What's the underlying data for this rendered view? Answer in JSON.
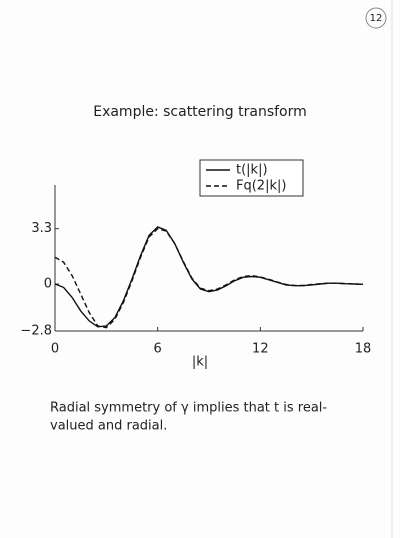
{
  "page_number": "12",
  "chart_data": {
    "type": "line",
    "title": "Example: scattering transform",
    "x": [
      0,
      0.5,
      1,
      1.5,
      2,
      2.5,
      3,
      3.5,
      4,
      4.5,
      5,
      5.5,
      6,
      6.5,
      7,
      7.5,
      8,
      8.5,
      9,
      9.5,
      10,
      10.5,
      11,
      11.5,
      12,
      12.5,
      13,
      13.5,
      14,
      14.5,
      15,
      15.5,
      16,
      16.5,
      17,
      17.5,
      18
    ],
    "series": [
      {
        "name": "t(|k|)",
        "color": "#111111",
        "line_style": "solid",
        "values": [
          0,
          -0.2,
          -0.8,
          -1.6,
          -2.2,
          -2.55,
          -2.5,
          -2.0,
          -1.0,
          0.3,
          1.7,
          2.9,
          3.4,
          3.2,
          2.4,
          1.3,
          0.3,
          -0.3,
          -0.45,
          -0.35,
          -0.1,
          0.2,
          0.4,
          0.45,
          0.4,
          0.25,
          0.1,
          -0.05,
          -0.1,
          -0.1,
          -0.05,
          0,
          0.05,
          0.05,
          0.02,
          0,
          -0.02
        ]
      },
      {
        "name": "Fq(2|k|)",
        "color": "#111111",
        "line_style": "dashed",
        "values": [
          1.6,
          1.3,
          0.5,
          -0.6,
          -1.7,
          -2.5,
          -2.6,
          -2.1,
          -1.1,
          0.2,
          1.6,
          2.8,
          3.3,
          3.15,
          2.4,
          1.35,
          0.35,
          -0.25,
          -0.4,
          -0.3,
          -0.05,
          0.25,
          0.45,
          0.5,
          0.42,
          0.28,
          0.12,
          -0.03,
          -0.08,
          -0.08,
          -0.03,
          0.02,
          0.05,
          0.04,
          0.02,
          0,
          -0.01
        ]
      }
    ],
    "x_label": "|k|",
    "xlim": [
      0,
      18
    ],
    "xticks": [
      0,
      6,
      12,
      18
    ],
    "ylim": [
      -2.8,
      5.9
    ],
    "yticks": [
      {
        "value": -2.8,
        "label": "−2.8"
      },
      0,
      3.3
    ],
    "grid": false,
    "legend": "upper right"
  },
  "text_lines": [
    "Radial symmetry of γ implies that t is real-",
    "valued and radial."
  ]
}
